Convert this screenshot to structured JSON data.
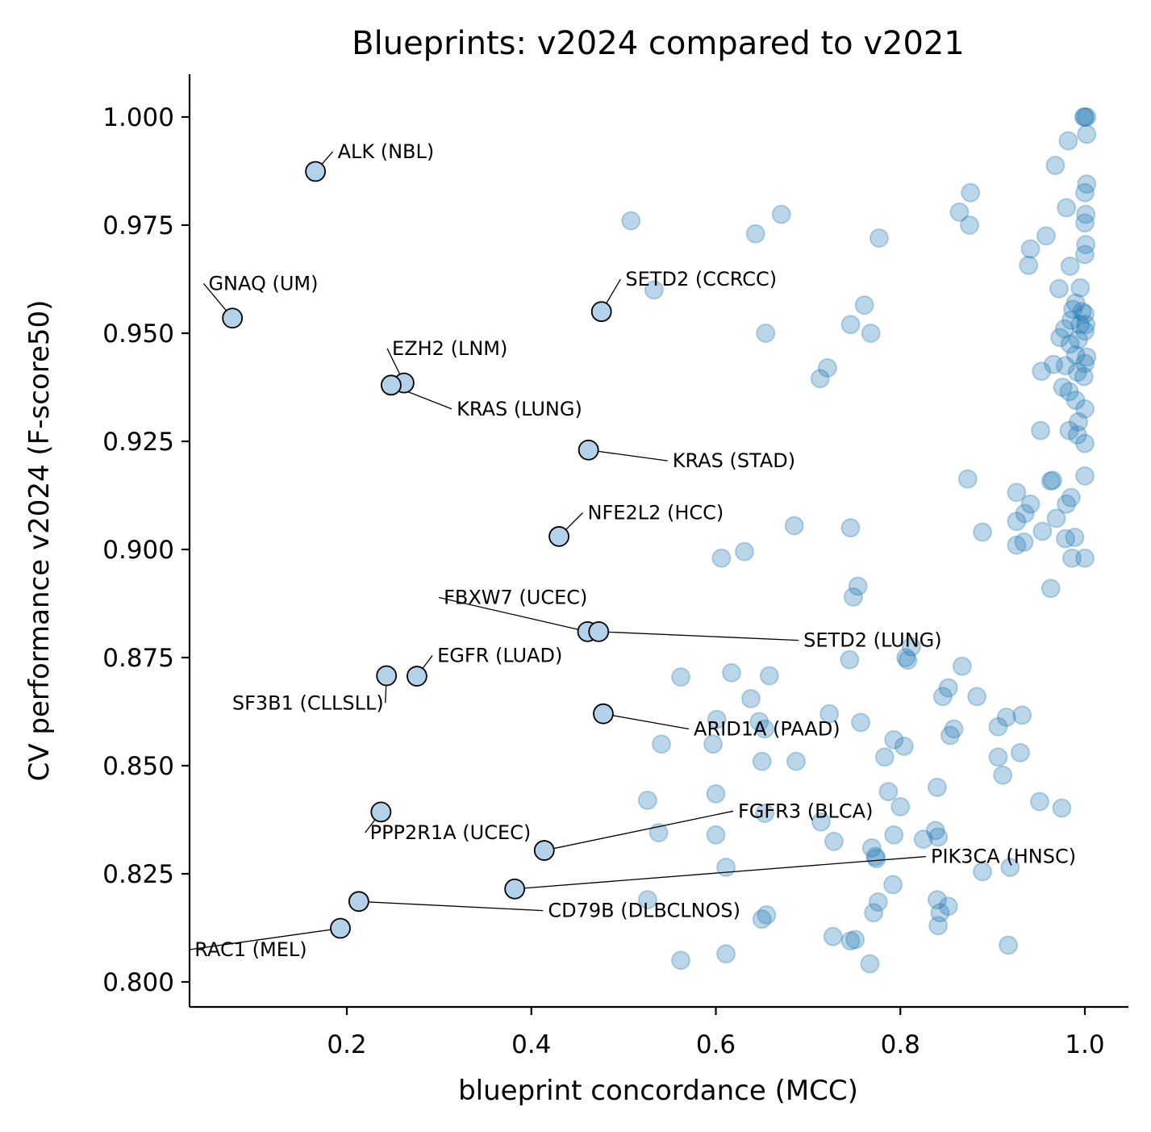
{
  "chart_data": {
    "type": "scatter",
    "title": "Blueprints: v2024 compared to v2021",
    "xlabel": "blueprint concordance (MCC)",
    "ylabel": "CV performance v2024 (F-score50)",
    "xlim": [
      0.03,
      1.05
    ],
    "ylim": [
      0.7935,
      1.01
    ],
    "xticks": [
      0.2,
      0.4,
      0.6,
      0.8,
      1.0
    ],
    "xtick_labels": [
      "0.2",
      "0.4",
      "0.6",
      "0.8",
      "1.0"
    ],
    "yticks": [
      0.8,
      0.825,
      0.85,
      0.875,
      0.9,
      0.925,
      0.95,
      0.975,
      1.0
    ],
    "ytick_labels": [
      "0.800",
      "0.825",
      "0.850",
      "0.875",
      "0.900",
      "0.925",
      "0.950",
      "0.975",
      "1.000"
    ],
    "point_color": "#1f77b4",
    "highlight_color": "#b3d1e8",
    "highlighted": [
      {
        "label": "ALK (NBL)",
        "x": 0.166,
        "y": 0.9874,
        "tx": 0.19,
        "ty": 0.9905,
        "anchor": "start"
      },
      {
        "label": "GNAQ (UM)",
        "x": 0.076,
        "y": 0.9535,
        "tx": 0.05,
        "ty": 0.96,
        "anchor": "start"
      },
      {
        "label": "SETD2 (CCRCC)",
        "x": 0.476,
        "y": 0.955,
        "tx": 0.502,
        "ty": 0.961,
        "anchor": "start"
      },
      {
        "label": "EZH2 (LNM)",
        "x": 0.262,
        "y": 0.9385,
        "tx": 0.249,
        "ty": 0.945,
        "anchor": "start"
      },
      {
        "label": "KRAS (LUNG)",
        "x": 0.248,
        "y": 0.938,
        "tx": 0.319,
        "ty": 0.931,
        "anchor": "start"
      },
      {
        "label": "KRAS (STAD)",
        "x": 0.462,
        "y": 0.923,
        "tx": 0.553,
        "ty": 0.919,
        "anchor": "start"
      },
      {
        "label": "NFE2L2 (HCC)",
        "x": 0.43,
        "y": 0.903,
        "tx": 0.461,
        "ty": 0.907,
        "anchor": "start"
      },
      {
        "label": "FBXW7 (UCEC)",
        "x": 0.461,
        "y": 0.881,
        "tx": 0.305,
        "ty": 0.8874,
        "anchor": "start"
      },
      {
        "label": "SETD2 (LUNG)",
        "x": 0.473,
        "y": 0.881,
        "tx": 0.695,
        "ty": 0.8775,
        "anchor": "start"
      },
      {
        "label": "EGFR (LUAD)",
        "x": 0.276,
        "y": 0.8707,
        "tx": 0.298,
        "ty": 0.874,
        "anchor": "start"
      },
      {
        "label": "SF3B1 (CLLSLL)",
        "x": 0.243,
        "y": 0.8708,
        "tx": 0.24,
        "ty": 0.863,
        "anchor": "end"
      },
      {
        "label": "ARID1A (PAAD)",
        "x": 0.478,
        "y": 0.862,
        "tx": 0.576,
        "ty": 0.857,
        "anchor": "start"
      },
      {
        "label": "PPP2R1A (UCEC)",
        "x": 0.237,
        "y": 0.8393,
        "tx": 0.225,
        "ty": 0.833,
        "anchor": "start"
      },
      {
        "label": "FGFR3 (BLCA)",
        "x": 0.414,
        "y": 0.8304,
        "tx": 0.624,
        "ty": 0.838,
        "anchor": "start"
      },
      {
        "label": "PIK3CA (HNSC)",
        "x": 0.382,
        "y": 0.8215,
        "tx": 0.833,
        "ty": 0.8275,
        "anchor": "start"
      },
      {
        "label": "CD79B (DLBCLNOS)",
        "x": 0.213,
        "y": 0.8186,
        "tx": 0.418,
        "ty": 0.815,
        "anchor": "start"
      },
      {
        "label": "RAC1 (MEL)",
        "x": 0.193,
        "y": 0.8124,
        "tx": 0.035,
        "ty": 0.806,
        "anchor": "start"
      }
    ],
    "points": [
      [
        0.508,
        0.976
      ],
      [
        0.643,
        0.973
      ],
      [
        0.671,
        0.9775
      ],
      [
        0.777,
        0.972
      ],
      [
        0.876,
        0.9825
      ],
      [
        0.864,
        0.978
      ],
      [
        0.875,
        0.975
      ],
      [
        0.533,
        0.96
      ],
      [
        0.761,
        0.9565
      ],
      [
        0.746,
        0.952
      ],
      [
        0.768,
        0.95
      ],
      [
        0.654,
        0.95
      ],
      [
        0.721,
        0.942
      ],
      [
        0.713,
        0.9395
      ],
      [
        0.873,
        0.9163
      ],
      [
        0.889,
        0.904
      ],
      [
        0.685,
        0.9055
      ],
      [
        0.746,
        0.905
      ],
      [
        0.606,
        0.898
      ],
      [
        0.631,
        0.8995
      ],
      [
        0.754,
        0.8915
      ],
      [
        0.749,
        0.889
      ],
      [
        0.812,
        0.8775
      ],
      [
        0.806,
        0.875
      ],
      [
        0.745,
        0.8745
      ],
      [
        0.808,
        0.8744
      ],
      [
        0.867,
        0.873
      ],
      [
        0.852,
        0.868
      ],
      [
        0.846,
        0.866
      ],
      [
        0.883,
        0.866
      ],
      [
        0.562,
        0.8705
      ],
      [
        0.617,
        0.8715
      ],
      [
        0.658,
        0.8708
      ],
      [
        0.638,
        0.8655
      ],
      [
        0.647,
        0.8602
      ],
      [
        0.653,
        0.8585
      ],
      [
        0.601,
        0.8607
      ],
      [
        0.723,
        0.862
      ],
      [
        0.757,
        0.86
      ],
      [
        0.858,
        0.8585
      ],
      [
        0.854,
        0.857
      ],
      [
        0.793,
        0.856
      ],
      [
        0.804,
        0.8545
      ],
      [
        0.541,
        0.855
      ],
      [
        0.597,
        0.855
      ],
      [
        0.65,
        0.851
      ],
      [
        0.687,
        0.851
      ],
      [
        0.783,
        0.852
      ],
      [
        0.84,
        0.845
      ],
      [
        0.787,
        0.844
      ],
      [
        0.8,
        0.8405
      ],
      [
        0.526,
        0.842
      ],
      [
        0.6,
        0.8435
      ],
      [
        0.653,
        0.839
      ],
      [
        0.714,
        0.837
      ],
      [
        0.538,
        0.8345
      ],
      [
        0.6,
        0.834
      ],
      [
        0.728,
        0.8325
      ],
      [
        0.793,
        0.834
      ],
      [
        0.825,
        0.833
      ],
      [
        0.838,
        0.835
      ],
      [
        0.841,
        0.8335
      ],
      [
        0.769,
        0.831
      ],
      [
        0.773,
        0.829
      ],
      [
        0.774,
        0.8285
      ],
      [
        0.611,
        0.8265
      ],
      [
        0.526,
        0.819
      ],
      [
        0.792,
        0.8225
      ],
      [
        0.776,
        0.8185
      ],
      [
        0.771,
        0.816
      ],
      [
        0.84,
        0.819
      ],
      [
        0.843,
        0.816
      ],
      [
        0.852,
        0.8175
      ],
      [
        0.841,
        0.813
      ],
      [
        0.562,
        0.805
      ],
      [
        0.611,
        0.8065
      ],
      [
        0.727,
        0.8105
      ],
      [
        0.746,
        0.8095
      ],
      [
        0.751,
        0.8098
      ],
      [
        0.767,
        0.8042
      ],
      [
        0.917,
        0.8085
      ],
      [
        0.655,
        0.8155
      ],
      [
        0.65,
        0.8145
      ],
      [
        0.889,
        0.8255
      ],
      [
        0.919,
        0.8265
      ],
      [
        0.951,
        0.8417
      ],
      [
        0.975,
        0.8402
      ],
      [
        0.906,
        0.852
      ],
      [
        0.911,
        0.8478
      ],
      [
        0.93,
        0.853
      ],
      [
        0.906,
        0.859
      ],
      [
        0.915,
        0.8612
      ],
      [
        0.932,
        0.8617
      ],
      [
        0.926,
        0.9132
      ],
      [
        0.941,
        0.9105
      ],
      [
        0.935,
        0.9083
      ],
      [
        0.926,
        0.9065
      ],
      [
        0.926,
        0.901
      ],
      [
        0.934,
        0.9017
      ],
      [
        0.954,
        0.9042
      ],
      [
        0.963,
        0.9158
      ],
      [
        0.965,
        0.916
      ],
      [
        0.969,
        0.9072
      ],
      [
        0.979,
        0.9025
      ],
      [
        0.989,
        0.9028
      ],
      [
        0.986,
        0.898
      ],
      [
        1.0,
        0.898
      ],
      [
        0.963,
        0.891
      ],
      [
        0.98,
        0.9105
      ],
      [
        0.985,
        0.912
      ],
      [
        1.0,
        0.917
      ],
      [
        0.952,
        0.9275
      ],
      [
        0.983,
        0.9275
      ],
      [
        0.992,
        0.9265
      ],
      [
        1.0,
        0.9245
      ],
      [
        0.993,
        0.9295
      ],
      [
        0.953,
        0.9412
      ],
      [
        0.966,
        0.9428
      ],
      [
        0.976,
        0.9375
      ],
      [
        0.983,
        0.9365
      ],
      [
        0.99,
        0.9345
      ],
      [
        1.0,
        0.9325
      ],
      [
        0.979,
        0.9425
      ],
      [
        0.992,
        0.941
      ],
      [
        0.999,
        0.94
      ],
      [
        0.99,
        0.945
      ],
      [
        1.0,
        0.943
      ],
      [
        1.002,
        0.9445
      ],
      [
        0.984,
        0.9475
      ],
      [
        0.973,
        0.949
      ],
      [
        0.978,
        0.951
      ],
      [
        0.985,
        0.953
      ],
      [
        0.993,
        0.9485
      ],
      [
        0.995,
        0.952
      ],
      [
        1.0,
        0.9505
      ],
      [
        1.001,
        0.952
      ],
      [
        0.987,
        0.9555
      ],
      [
        0.997,
        0.955
      ],
      [
        1.0,
        0.9545
      ],
      [
        0.99,
        0.957
      ],
      [
        0.995,
        0.9605
      ],
      [
        0.972,
        0.9603
      ],
      [
        0.984,
        0.9655
      ],
      [
        0.939,
        0.9657
      ],
      [
        0.941,
        0.9695
      ],
      [
        0.958,
        0.9725
      ],
      [
        0.98,
        0.979
      ],
      [
        1.0,
        0.9682
      ],
      [
        1.001,
        0.9705
      ],
      [
        1.0,
        0.9755
      ],
      [
        1.001,
        0.9775
      ],
      [
        0.968,
        0.9888
      ],
      [
        1.0,
        0.9825
      ],
      [
        1.002,
        0.9845
      ],
      [
        0.982,
        0.9945
      ],
      [
        1.002,
        0.996
      ],
      [
        0.999,
        1.0
      ],
      [
        1.0,
        1.0
      ],
      [
        1.002,
        1.0
      ]
    ]
  }
}
